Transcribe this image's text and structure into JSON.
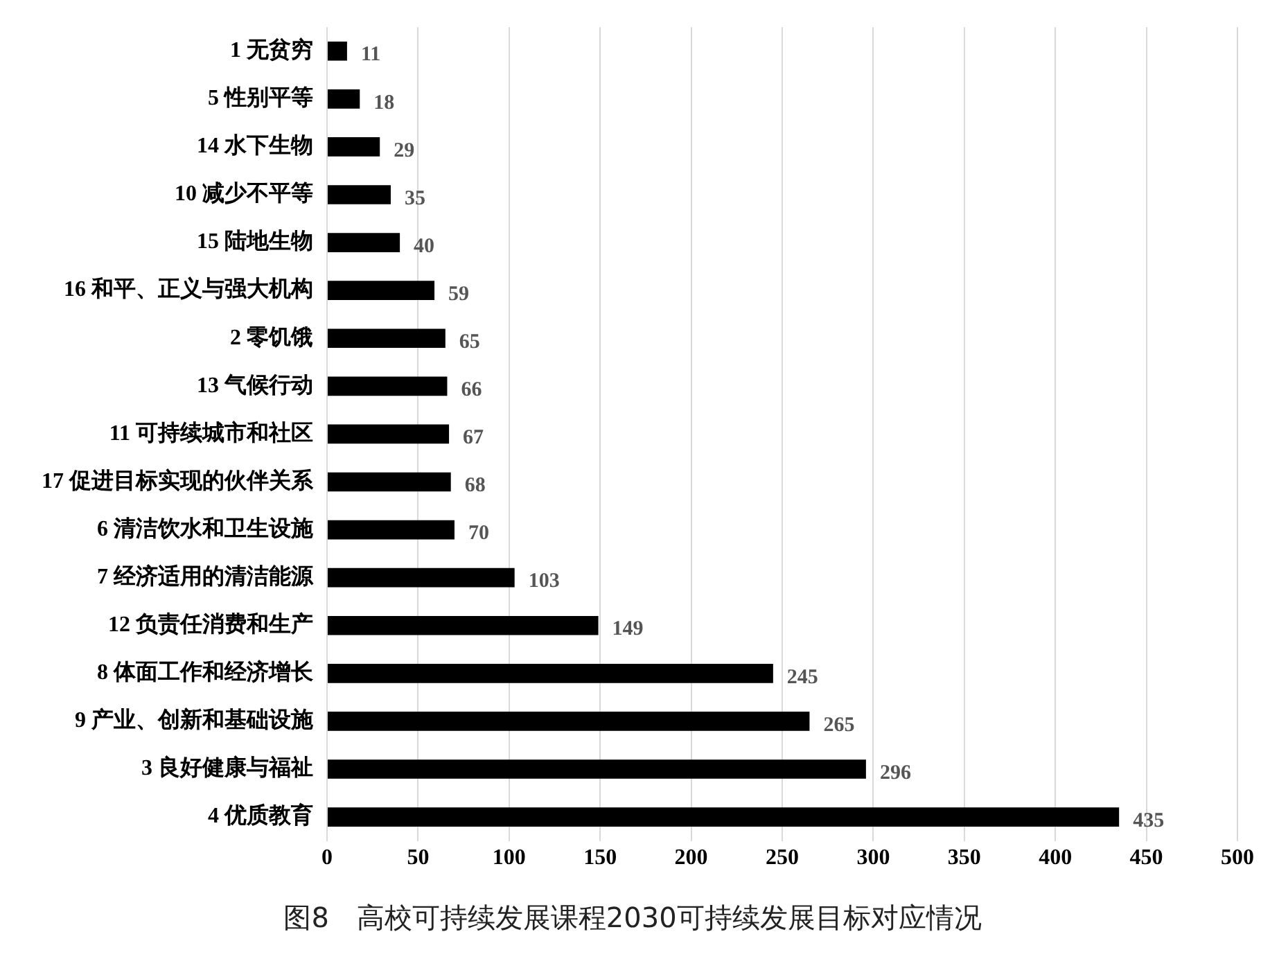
{
  "chart_data": {
    "type": "bar",
    "orientation": "horizontal",
    "title": "图8　高校可持续发展课程2030可持续发展目标对应情况",
    "categories": [
      "1 无贫穷",
      "5 性别平等",
      "14 水下生物",
      "10 减少不平等",
      "15 陆地生物",
      "16 和平、正义与强大机构",
      "2 零饥饿",
      "13 气候行动",
      "11 可持续城市和社区",
      "17 促进目标实现的伙伴关系",
      "6 清洁饮水和卫生设施",
      "7 经济适用的清洁能源",
      "12 负责任消费和生产",
      "8 体面工作和经济增长",
      "9 产业、创新和基础设施",
      "3 良好健康与福祉",
      "4 优质教育"
    ],
    "values": [
      11,
      18,
      29,
      35,
      40,
      59,
      65,
      66,
      67,
      68,
      70,
      103,
      149,
      245,
      265,
      296,
      435
    ],
    "color": "#000000",
    "xlim": [
      0,
      500
    ],
    "xticks": [
      0,
      50,
      100,
      150,
      200,
      250,
      300,
      350,
      400,
      450,
      500
    ],
    "grid": "x",
    "legend": false,
    "data_labels": true
  }
}
